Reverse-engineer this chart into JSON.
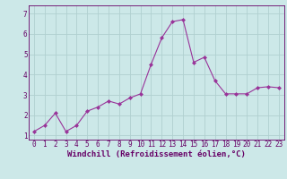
{
  "x": [
    0,
    1,
    2,
    3,
    4,
    5,
    6,
    7,
    8,
    9,
    10,
    11,
    12,
    13,
    14,
    15,
    16,
    17,
    18,
    19,
    20,
    21,
    22,
    23
  ],
  "y": [
    1.2,
    1.5,
    2.1,
    1.2,
    1.5,
    2.2,
    2.4,
    2.7,
    2.55,
    2.85,
    3.05,
    4.5,
    5.8,
    6.6,
    6.7,
    4.6,
    4.85,
    3.7,
    3.05,
    3.05,
    3.05,
    3.35,
    3.4,
    3.35
  ],
  "line_color": "#993399",
  "marker": "D",
  "marker_size": 2.0,
  "bg_color": "#cce8e8",
  "grid_color": "#b0d0d0",
  "xlabel": "Windchill (Refroidissement éolien,°C)",
  "xlim": [
    -0.5,
    23.5
  ],
  "ylim": [
    0.8,
    7.4
  ],
  "yticks": [
    1,
    2,
    3,
    4,
    5,
    6,
    7
  ],
  "xticks": [
    0,
    1,
    2,
    3,
    4,
    5,
    6,
    7,
    8,
    9,
    10,
    11,
    12,
    13,
    14,
    15,
    16,
    17,
    18,
    19,
    20,
    21,
    22,
    23
  ],
  "line_color_hex": "#993399",
  "axis_label_color": "#660066",
  "tick_color": "#660066",
  "xlabel_fontsize": 6.5,
  "tick_fontsize": 5.5,
  "linewidth": 0.8
}
